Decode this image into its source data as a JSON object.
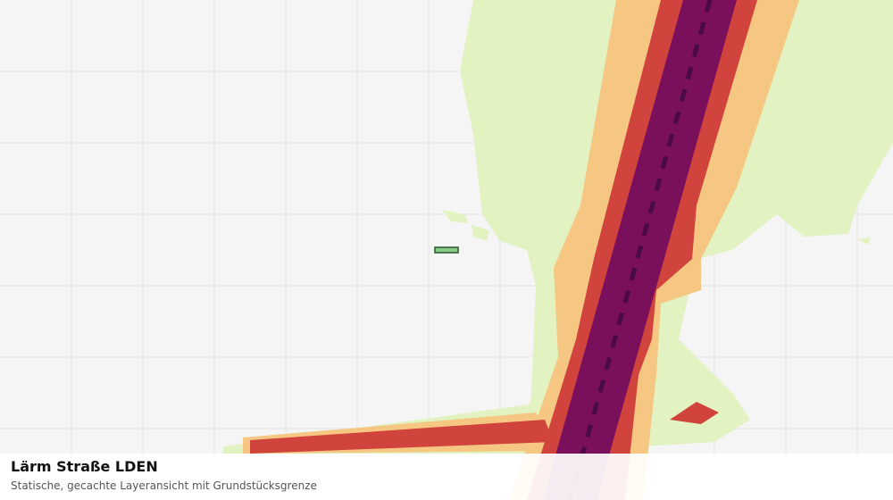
{
  "header": {
    "title": "Lärm Straße LDEN",
    "subtitle": "Statische, gecachte Layeransicht mit Grundstücksgrenze"
  }
}
